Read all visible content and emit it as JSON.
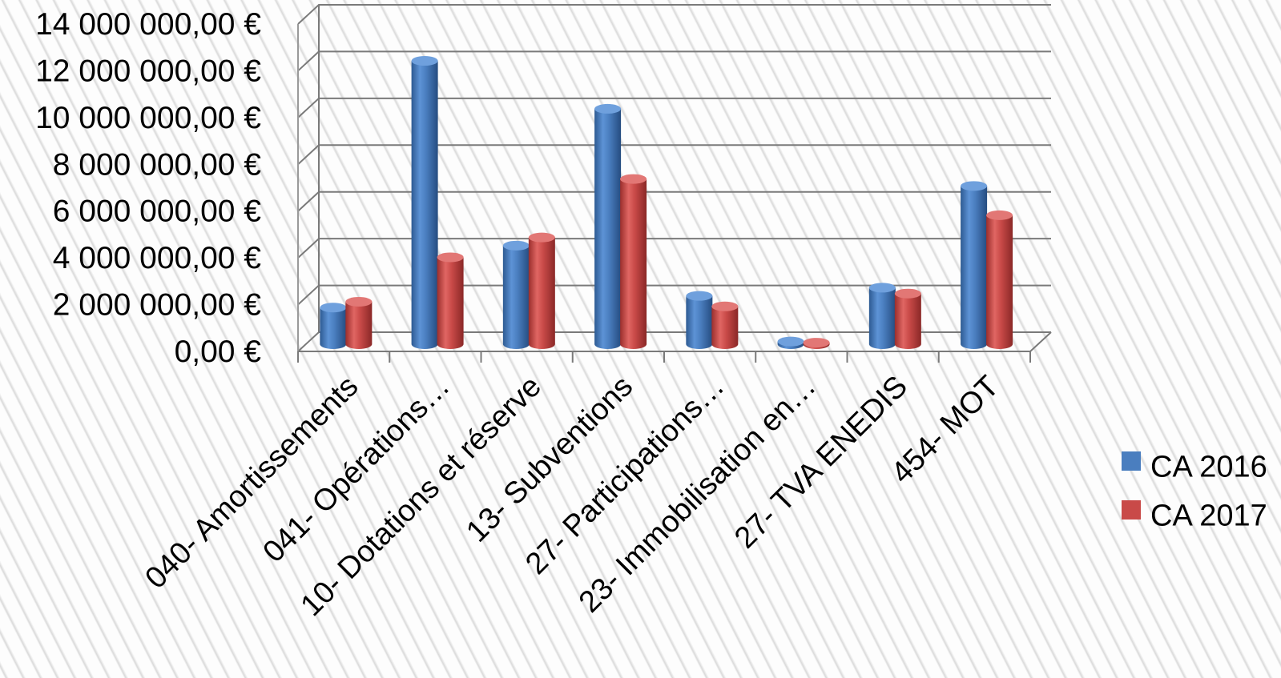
{
  "chart_data": {
    "type": "bar",
    "title": "",
    "xlabel": "",
    "ylabel": "",
    "categories": [
      "040- Amortissements",
      "041- Opérations…",
      "10- Dotations et réserve",
      "13- Subventions",
      "27- Participations…",
      "23- Immobilisation en…",
      "27- TVA ENEDIS",
      "454- MOT"
    ],
    "series": [
      {
        "name": "CA 2016",
        "color": "#4a7ebf",
        "values": [
          1600000,
          12150000,
          4250000,
          10100000,
          2100000,
          150000,
          2450000,
          6800000
        ]
      },
      {
        "name": "CA 2017",
        "color": "#c94a48",
        "values": [
          1850000,
          3750000,
          4600000,
          7100000,
          1650000,
          100000,
          2200000,
          5550000
        ]
      }
    ],
    "ylim": [
      0,
      14000000
    ],
    "ytick_values": [
      0,
      2000000,
      4000000,
      6000000,
      8000000,
      10000000,
      12000000,
      14000000
    ],
    "ytick_labels": [
      "0,00 €",
      "2 000 000,00 €",
      "4 000 000,00 €",
      "6 000 000,00 €",
      "8 000 000,00 €",
      "10 000 000,00 €",
      "12 000 000,00 €",
      "14 000 000,00 €"
    ],
    "grid": true,
    "legend_position": "right",
    "style": "3d-cylinder"
  }
}
